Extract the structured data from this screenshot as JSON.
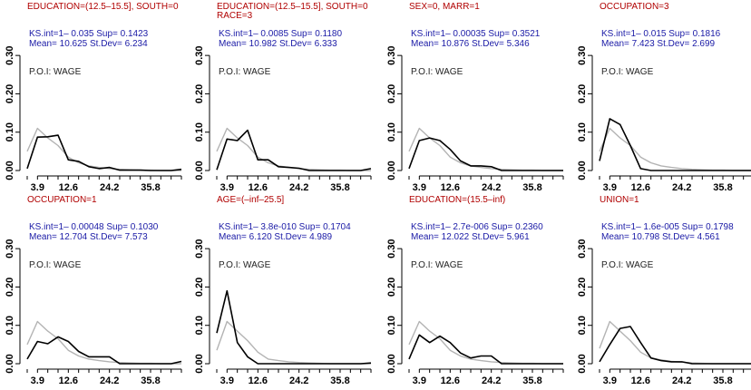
{
  "chart_data": [
    {
      "type": "line",
      "title_lines": [
        "EDUCATION=(12.5–15.5], SOUTH=0"
      ],
      "stats": [
        "KS.int=1– 0.035 Sup= 0.1423",
        "Mean= 10.625 St.Dev= 6.234"
      ],
      "poi": "P.O.I: WAGE",
      "x": [
        1,
        3.9,
        6.8,
        9.7,
        12.6,
        15.5,
        18.4,
        21.3,
        24.2,
        27.1,
        30,
        32.9,
        35.8,
        38.7,
        41.6,
        44.5
      ],
      "series": [
        {
          "color": "#000000",
          "values": [
            0.005,
            0.087,
            0.088,
            0.092,
            0.028,
            0.024,
            0.01,
            0.005,
            0.008,
            0.001,
            0.001,
            0.001,
            0,
            0,
            0,
            0.003
          ]
        },
        {
          "color": "#b3b3b3",
          "values": [
            0.05,
            0.11,
            0.085,
            0.065,
            0.035,
            0.02,
            0.012,
            0.008,
            0.005,
            0.003,
            0.002,
            0.001,
            0.001,
            0,
            0,
            0
          ]
        }
      ],
      "xticks": [
        "3.9",
        "12.6",
        "24.2",
        "35.8"
      ],
      "yticks": [
        "0.00",
        "0.10",
        "0.20",
        "0.30"
      ],
      "ylim": [
        0,
        0.35
      ]
    },
    {
      "type": "line",
      "title_lines": [
        "EDUCATION=(12.5–15.5], SOUTH=0",
        "RACE=3"
      ],
      "stats": [
        "KS.int=1– 0.0085 Sup= 0.1180",
        "Mean= 10.982 St.Dev= 6.333"
      ],
      "poi": "P.O.I: WAGE",
      "x": [
        1,
        3.9,
        6.8,
        9.7,
        12.6,
        15.5,
        18.4,
        21.3,
        24.2,
        27.1,
        30,
        32.9,
        35.8,
        38.7,
        41.6,
        44.5
      ],
      "series": [
        {
          "color": "#000000",
          "values": [
            0.002,
            0.082,
            0.078,
            0.105,
            0.028,
            0.028,
            0.01,
            0.008,
            0.006,
            0,
            0,
            0,
            0,
            0,
            0,
            0.005
          ]
        },
        {
          "color": "#b3b3b3",
          "values": [
            0.05,
            0.11,
            0.085,
            0.065,
            0.035,
            0.02,
            0.012,
            0.008,
            0.005,
            0.003,
            0.002,
            0.001,
            0.001,
            0,
            0,
            0
          ]
        }
      ],
      "xticks": [
        "3.9",
        "12.6",
        "24.2",
        "35.8"
      ],
      "yticks": [
        "0.00",
        "0.10",
        "0.20",
        "0.30"
      ],
      "ylim": [
        0,
        0.35
      ]
    },
    {
      "type": "line",
      "title_lines": [
        "SEX=0, MARR=1"
      ],
      "stats": [
        "KS.int=1– 0.00035 Sup= 0.3521",
        "Mean= 10.876 St.Dev= 5.346"
      ],
      "poi": "P.O.I: WAGE",
      "x": [
        1,
        3.9,
        6.8,
        9.7,
        12.6,
        15.5,
        18.4,
        21.3,
        24.2,
        27.1,
        30,
        32.9,
        35.8,
        38.7,
        41.6,
        44.5
      ],
      "series": [
        {
          "color": "#000000",
          "values": [
            0.005,
            0.078,
            0.085,
            0.078,
            0.055,
            0.025,
            0.012,
            0.012,
            0.01,
            0,
            0,
            0,
            0,
            0,
            0,
            0
          ]
        },
        {
          "color": "#b3b3b3",
          "values": [
            0.05,
            0.11,
            0.085,
            0.065,
            0.035,
            0.02,
            0.012,
            0.008,
            0.005,
            0.003,
            0.002,
            0.001,
            0.001,
            0,
            0,
            0
          ]
        }
      ],
      "xticks": [
        "3.9",
        "12.6",
        "24.2",
        "35.8"
      ],
      "yticks": [
        "0.00",
        "0.10",
        "0.20",
        "0.30"
      ],
      "ylim": [
        0,
        0.35
      ]
    },
    {
      "type": "line",
      "title_lines": [
        "OCCUPATION=3"
      ],
      "stats": [
        "KS.int=1– 0.015 Sup= 0.1816",
        "Mean= 7.423 St.Dev= 2.699"
      ],
      "poi": "P.O.I: WAGE",
      "x": [
        1,
        3.9,
        6.8,
        9.7,
        12.6,
        15.5,
        18.4,
        21.3,
        24.2,
        27.1,
        30,
        32.9,
        35.8,
        38.7,
        41.6,
        44.5
      ],
      "series": [
        {
          "color": "#000000",
          "values": [
            0.025,
            0.135,
            0.12,
            0.065,
            0.005,
            0,
            0,
            0,
            0,
            0,
            0,
            0,
            0,
            0,
            0,
            0
          ]
        },
        {
          "color": "#b3b3b3",
          "values": [
            0.05,
            0.11,
            0.085,
            0.065,
            0.035,
            0.02,
            0.012,
            0.008,
            0.005,
            0.003,
            0.002,
            0.001,
            0.001,
            0,
            0,
            0
          ]
        }
      ],
      "xticks": [
        "3.9",
        "12.6",
        "24.2",
        "35.8"
      ],
      "yticks": [
        "0.00",
        "0.10",
        "0.20",
        "0.30"
      ],
      "ylim": [
        0,
        0.35
      ]
    },
    {
      "type": "line",
      "title_lines": [
        "OCCUPATION=1"
      ],
      "stats": [
        "KS.int=1– 0.00048 Sup= 0.1030",
        "Mean= 12.704 St.Dev= 7.573"
      ],
      "poi": "P.O.I: WAGE",
      "x": [
        1,
        3.9,
        6.8,
        9.7,
        12.6,
        15.5,
        18.4,
        21.3,
        24.2,
        27.1,
        30,
        32.9,
        35.8,
        38.7,
        41.6,
        44.5
      ],
      "series": [
        {
          "color": "#000000",
          "values": [
            0.012,
            0.058,
            0.052,
            0.07,
            0.058,
            0.032,
            0.018,
            0.018,
            0.018,
            0,
            0,
            0,
            0,
            0,
            0,
            0.006
          ]
        },
        {
          "color": "#b3b3b3",
          "values": [
            0.05,
            0.11,
            0.085,
            0.065,
            0.035,
            0.02,
            0.012,
            0.008,
            0.005,
            0.003,
            0.002,
            0.001,
            0.001,
            0,
            0,
            0
          ]
        }
      ],
      "xticks": [
        "3.9",
        "12.6",
        "24.2",
        "35.8"
      ],
      "yticks": [
        "0.00",
        "0.10",
        "0.20",
        "0.30"
      ],
      "ylim": [
        0,
        0.35
      ]
    },
    {
      "type": "line",
      "title_lines": [
        "AGE=(–inf–25.5]"
      ],
      "stats": [
        "KS.int=1– 3.8e-010 Sup= 0.1704",
        "Mean= 6.120 St.Dev= 4.989"
      ],
      "poi": "P.O.I: WAGE",
      "x": [
        1,
        3.9,
        6.8,
        9.7,
        12.6,
        15.5,
        18.4,
        21.3,
        24.2,
        27.1,
        30,
        32.9,
        35.8,
        38.7,
        41.6,
        44.5
      ],
      "series": [
        {
          "color": "#000000",
          "values": [
            0.08,
            0.19,
            0.055,
            0.018,
            0,
            0,
            0,
            0,
            0,
            0,
            0,
            0,
            0,
            0,
            0,
            0.002
          ]
        },
        {
          "color": "#b3b3b3",
          "values": [
            0.035,
            0.11,
            0.085,
            0.06,
            0.03,
            0.012,
            0.008,
            0.005,
            0.003,
            0.002,
            0.001,
            0,
            0,
            0,
            0,
            0
          ]
        }
      ],
      "xticks": [
        "3.9",
        "12.6",
        "24.2",
        "35.8"
      ],
      "yticks": [
        "0.00",
        "0.10",
        "0.20",
        "0.30"
      ],
      "ylim": [
        0,
        0.35
      ]
    },
    {
      "type": "line",
      "title_lines": [
        "EDUCATION=(15.5–inf)"
      ],
      "stats": [
        "KS.int=1– 2.7e-006 Sup= 0.2360",
        "Mean= 12.022 St.Dev= 5.961"
      ],
      "poi": "P.O.I: WAGE",
      "x": [
        1,
        3.9,
        6.8,
        9.7,
        12.6,
        15.5,
        18.4,
        21.3,
        24.2,
        27.1,
        30,
        32.9,
        35.8,
        38.7,
        41.6,
        44.5
      ],
      "series": [
        {
          "color": "#000000",
          "values": [
            0.012,
            0.075,
            0.055,
            0.072,
            0.055,
            0.028,
            0.015,
            0.02,
            0.02,
            0,
            0,
            0,
            0,
            0,
            0,
            0
          ]
        },
        {
          "color": "#b3b3b3",
          "values": [
            0.05,
            0.11,
            0.085,
            0.065,
            0.035,
            0.02,
            0.012,
            0.008,
            0.005,
            0.003,
            0.002,
            0.001,
            0.001,
            0,
            0,
            0
          ]
        }
      ],
      "xticks": [
        "3.9",
        "12.6",
        "24.2",
        "35.8"
      ],
      "yticks": [
        "0.00",
        "0.10",
        "0.20",
        "0.30"
      ],
      "ylim": [
        0,
        0.35
      ]
    },
    {
      "type": "line",
      "title_lines": [
        "UNION=1"
      ],
      "stats": [
        "KS.int=1– 1.6e-005 Sup= 0.1798",
        "Mean= 10.798 St.Dev= 4.561"
      ],
      "poi": "P.O.I: WAGE",
      "x": [
        1,
        3.9,
        6.8,
        9.7,
        12.6,
        15.5,
        18.4,
        21.3,
        24.2,
        27.1,
        30,
        32.9,
        35.8,
        38.7,
        41.6,
        44.5
      ],
      "series": [
        {
          "color": "#000000",
          "values": [
            0.005,
            0.05,
            0.092,
            0.097,
            0.055,
            0.015,
            0.008,
            0.005,
            0.005,
            0,
            0,
            0,
            0,
            0,
            0,
            0
          ]
        },
        {
          "color": "#b3b3b3",
          "values": [
            0.04,
            0.11,
            0.085,
            0.06,
            0.03,
            0.015,
            0.01,
            0.006,
            0.004,
            0.002,
            0.001,
            0,
            0,
            0,
            0,
            0
          ]
        }
      ],
      "xticks": [
        "3.9",
        "12.6",
        "24.2",
        "35.8"
      ],
      "yticks": [
        "0.00",
        "0.10",
        "0.20",
        "0.30"
      ],
      "ylim": [
        0,
        0.35
      ]
    }
  ]
}
